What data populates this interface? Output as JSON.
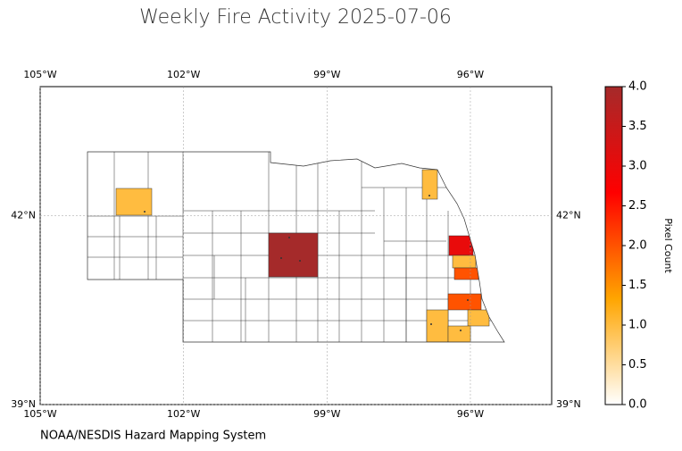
{
  "chart_data": {
    "type": "map",
    "title": "Weekly Fire Activity 2025-07-06",
    "source": "NOAA/NESDIS Hazard Mapping System",
    "xlim": [
      -105,
      -94.3
    ],
    "ylim": [
      39,
      44.05
    ],
    "xticks": [
      {
        "value": -105,
        "label": "105°W"
      },
      {
        "value": -102,
        "label": "102°W"
      },
      {
        "value": -99,
        "label": "99°W"
      },
      {
        "value": -96,
        "label": "96°W"
      }
    ],
    "yticks": [
      {
        "value": 39,
        "label": "39°N"
      },
      {
        "value": 42,
        "label": "42°N"
      }
    ],
    "grid": true,
    "values": [
      1,
      4,
      1,
      3,
      1,
      2,
      2,
      1,
      1,
      1
    ],
    "colorbar": {
      "label": "Pixel Count",
      "lim": [
        0,
        4
      ],
      "colormap": [
        "#ffffff",
        "#ffa500",
        "#ff0000",
        "#a52a2a"
      ],
      "ticks": [
        {
          "value": 0,
          "label": "0.0"
        },
        {
          "value": 0.5,
          "label": "0.5"
        },
        {
          "value": 1,
          "label": "1.0"
        },
        {
          "value": 1.5,
          "label": "1.5"
        },
        {
          "value": 2,
          "label": "2.0"
        },
        {
          "value": 2.5,
          "label": "2.5"
        },
        {
          "value": 3,
          "label": "3.0"
        },
        {
          "value": 3.5,
          "label": "3.5"
        },
        {
          "value": 4,
          "label": "4.0"
        }
      ]
    }
  }
}
